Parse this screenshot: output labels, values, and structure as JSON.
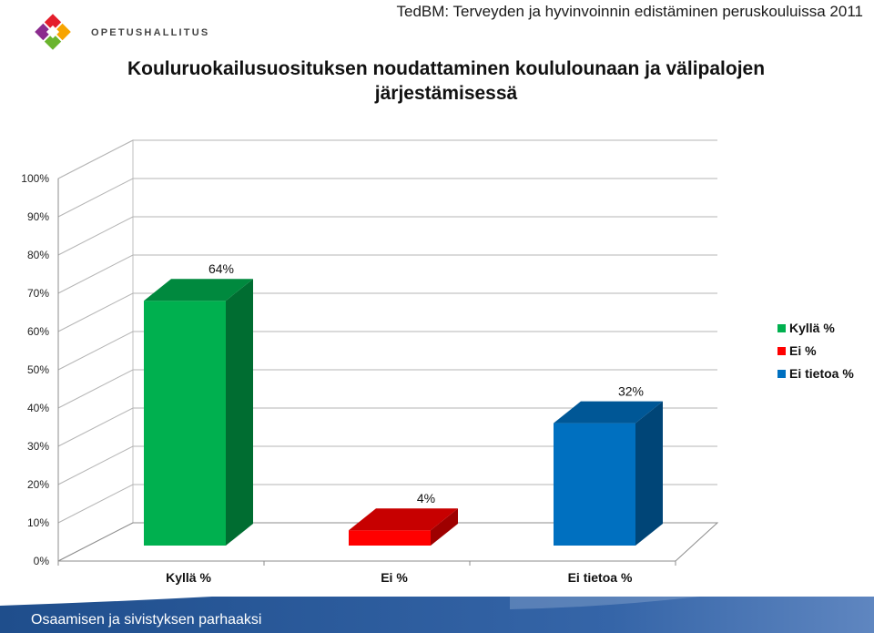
{
  "header": {
    "logo_text": "OPETUSHALLITUS",
    "top_right": "TedBM: Terveyden ja hyvinvoinnin edistäminen peruskouluissa 2011",
    "title_line1": "Kouluruokailusuosituksen noudattaminen koululounaan ja välipalojen",
    "title_line2": "järjestämisessä"
  },
  "footer": {
    "text": "Osaamisen ja sivistyksen parhaaksi"
  },
  "colors": {
    "kylla": "#00b04f",
    "ei": "#ff0000",
    "ei_tietoa": "#0070c0",
    "footer": "#2f5a9e"
  },
  "chart_data": {
    "type": "bar",
    "categories": [
      "Kyllä %",
      "Ei %",
      "Ei tietoa %"
    ],
    "values": [
      64,
      4,
      32
    ],
    "data_labels": [
      "64%",
      "4%",
      "32%"
    ],
    "yticks": [
      "0%",
      "10%",
      "20%",
      "30%",
      "40%",
      "50%",
      "60%",
      "70%",
      "80%",
      "90%",
      "100%"
    ],
    "ylim": [
      0,
      100
    ],
    "grid": true,
    "legend": [
      "Kyllä %",
      "Ei %",
      "Ei tietoa %"
    ],
    "legend_position": "right"
  }
}
